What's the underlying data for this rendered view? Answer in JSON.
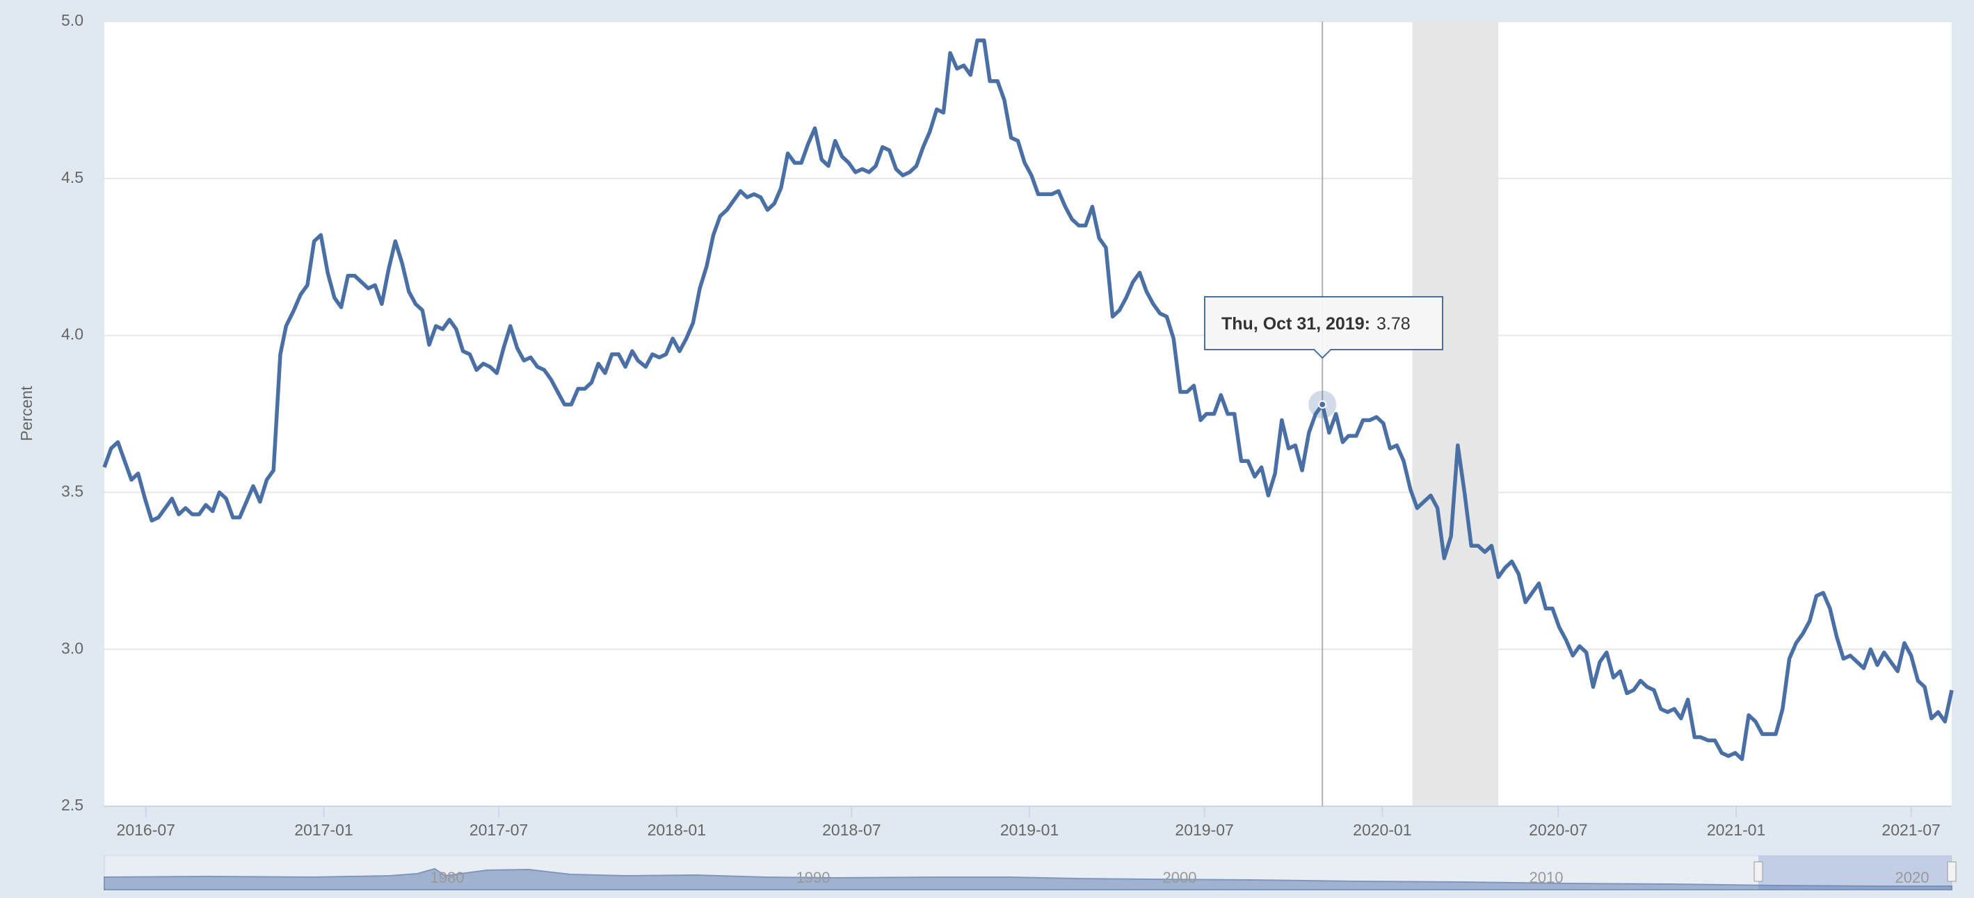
{
  "chart_data": {
    "type": "line",
    "y_label": "Percent",
    "x": [
      "2016-05-19",
      "2016-05-26",
      "2016-06-02",
      "2016-06-09",
      "2016-06-16",
      "2016-06-23",
      "2016-06-30",
      "2016-07-07",
      "2016-07-14",
      "2016-07-21",
      "2016-07-28",
      "2016-08-04",
      "2016-08-11",
      "2016-08-18",
      "2016-08-25",
      "2016-09-01",
      "2016-09-08",
      "2016-09-15",
      "2016-09-22",
      "2016-09-29",
      "2016-10-06",
      "2016-10-13",
      "2016-10-20",
      "2016-10-27",
      "2016-11-03",
      "2016-11-10",
      "2016-11-17",
      "2016-11-23",
      "2016-12-01",
      "2016-12-08",
      "2016-12-15",
      "2016-12-22",
      "2016-12-29",
      "2017-01-05",
      "2017-01-12",
      "2017-01-19",
      "2017-01-26",
      "2017-02-02",
      "2017-02-09",
      "2017-02-16",
      "2017-02-23",
      "2017-03-02",
      "2017-03-09",
      "2017-03-16",
      "2017-03-23",
      "2017-03-30",
      "2017-04-06",
      "2017-04-13",
      "2017-04-20",
      "2017-04-27",
      "2017-05-04",
      "2017-05-11",
      "2017-05-18",
      "2017-05-25",
      "2017-06-01",
      "2017-06-08",
      "2017-06-15",
      "2017-06-22",
      "2017-06-29",
      "2017-07-06",
      "2017-07-13",
      "2017-07-20",
      "2017-07-27",
      "2017-08-03",
      "2017-08-10",
      "2017-08-17",
      "2017-08-24",
      "2017-08-31",
      "2017-09-07",
      "2017-09-14",
      "2017-09-21",
      "2017-09-28",
      "2017-10-05",
      "2017-10-12",
      "2017-10-19",
      "2017-10-26",
      "2017-11-02",
      "2017-11-09",
      "2017-11-16",
      "2017-11-22",
      "2017-11-30",
      "2017-12-07",
      "2017-12-14",
      "2017-12-21",
      "2017-12-28",
      "2018-01-04",
      "2018-01-11",
      "2018-01-18",
      "2018-01-25",
      "2018-02-01",
      "2018-02-08",
      "2018-02-15",
      "2018-02-22",
      "2018-03-01",
      "2018-03-08",
      "2018-03-15",
      "2018-03-22",
      "2018-03-29",
      "2018-04-05",
      "2018-04-12",
      "2018-04-19",
      "2018-04-26",
      "2018-05-03",
      "2018-05-10",
      "2018-05-17",
      "2018-05-24",
      "2018-05-31",
      "2018-06-07",
      "2018-06-14",
      "2018-06-21",
      "2018-06-28",
      "2018-07-05",
      "2018-07-12",
      "2018-07-19",
      "2018-07-26",
      "2018-08-02",
      "2018-08-09",
      "2018-08-16",
      "2018-08-23",
      "2018-08-30",
      "2018-09-06",
      "2018-09-13",
      "2018-09-20",
      "2018-09-27",
      "2018-10-04",
      "2018-10-11",
      "2018-10-18",
      "2018-10-25",
      "2018-11-01",
      "2018-11-08",
      "2018-11-15",
      "2018-11-21",
      "2018-11-29",
      "2018-12-06",
      "2018-12-13",
      "2018-12-20",
      "2018-12-27",
      "2019-01-03",
      "2019-01-10",
      "2019-01-17",
      "2019-01-24",
      "2019-01-31",
      "2019-02-07",
      "2019-02-14",
      "2019-02-21",
      "2019-02-28",
      "2019-03-07",
      "2019-03-14",
      "2019-03-21",
      "2019-03-28",
      "2019-04-04",
      "2019-04-11",
      "2019-04-18",
      "2019-04-25",
      "2019-05-02",
      "2019-05-09",
      "2019-05-16",
      "2019-05-23",
      "2019-05-30",
      "2019-06-06",
      "2019-06-13",
      "2019-06-20",
      "2019-06-27",
      "2019-07-03",
      "2019-07-11",
      "2019-07-18",
      "2019-07-25",
      "2019-08-01",
      "2019-08-08",
      "2019-08-15",
      "2019-08-22",
      "2019-08-29",
      "2019-09-05",
      "2019-09-12",
      "2019-09-19",
      "2019-09-26",
      "2019-10-03",
      "2019-10-10",
      "2019-10-17",
      "2019-10-24",
      "2019-10-31",
      "2019-11-07",
      "2019-11-14",
      "2019-11-21",
      "2019-11-27",
      "2019-12-05",
      "2019-12-12",
      "2019-12-19",
      "2019-12-26",
      "2020-01-02",
      "2020-01-09",
      "2020-01-16",
      "2020-01-23",
      "2020-01-30",
      "2020-02-06",
      "2020-02-13",
      "2020-02-20",
      "2020-02-27",
      "2020-03-05",
      "2020-03-12",
      "2020-03-19",
      "2020-03-26",
      "2020-04-02",
      "2020-04-09",
      "2020-04-16",
      "2020-04-23",
      "2020-04-30",
      "2020-05-07",
      "2020-05-14",
      "2020-05-21",
      "2020-05-28",
      "2020-06-04",
      "2020-06-11",
      "2020-06-18",
      "2020-06-25",
      "2020-07-02",
      "2020-07-09",
      "2020-07-16",
      "2020-07-23",
      "2020-07-30",
      "2020-08-06",
      "2020-08-13",
      "2020-08-20",
      "2020-08-27",
      "2020-09-03",
      "2020-09-10",
      "2020-09-17",
      "2020-09-24",
      "2020-10-01",
      "2020-10-08",
      "2020-10-15",
      "2020-10-22",
      "2020-10-29",
      "2020-11-05",
      "2020-11-12",
      "2020-11-19",
      "2020-11-25",
      "2020-12-03",
      "2020-12-10",
      "2020-12-17",
      "2020-12-24",
      "2020-12-31",
      "2021-01-07",
      "2021-01-14",
      "2021-01-21",
      "2021-01-28",
      "2021-02-04",
      "2021-02-11",
      "2021-02-18",
      "2021-02-25",
      "2021-03-04",
      "2021-03-11",
      "2021-03-18",
      "2021-03-25",
      "2021-04-01",
      "2021-04-08",
      "2021-04-15",
      "2021-04-22",
      "2021-04-29",
      "2021-05-06",
      "2021-05-13",
      "2021-05-20",
      "2021-05-27",
      "2021-06-03",
      "2021-06-10",
      "2021-06-17",
      "2021-06-24",
      "2021-07-01",
      "2021-07-08",
      "2021-07-15",
      "2021-07-22",
      "2021-07-29",
      "2021-08-05",
      "2021-08-12"
    ],
    "values": [
      3.58,
      3.64,
      3.66,
      3.6,
      3.54,
      3.56,
      3.48,
      3.41,
      3.42,
      3.45,
      3.48,
      3.43,
      3.45,
      3.43,
      3.43,
      3.46,
      3.44,
      3.5,
      3.48,
      3.42,
      3.42,
      3.47,
      3.52,
      3.47,
      3.54,
      3.57,
      3.94,
      4.03,
      4.08,
      4.13,
      4.16,
      4.3,
      4.32,
      4.2,
      4.12,
      4.09,
      4.19,
      4.19,
      4.17,
      4.15,
      4.16,
      4.1,
      4.21,
      4.3,
      4.23,
      4.14,
      4.1,
      4.08,
      3.97,
      4.03,
      4.02,
      4.05,
      4.02,
      3.95,
      3.94,
      3.89,
      3.91,
      3.9,
      3.88,
      3.96,
      4.03,
      3.96,
      3.92,
      3.93,
      3.9,
      3.89,
      3.86,
      3.82,
      3.78,
      3.78,
      3.83,
      3.83,
      3.85,
      3.91,
      3.88,
      3.94,
      3.94,
      3.9,
      3.95,
      3.92,
      3.9,
      3.94,
      3.93,
      3.94,
      3.99,
      3.95,
      3.99,
      4.04,
      4.15,
      4.22,
      4.32,
      4.38,
      4.4,
      4.43,
      4.46,
      4.44,
      4.45,
      4.44,
      4.4,
      4.42,
      4.47,
      4.58,
      4.55,
      4.55,
      4.61,
      4.66,
      4.56,
      4.54,
      4.62,
      4.57,
      4.55,
      4.52,
      4.53,
      4.52,
      4.54,
      4.6,
      4.59,
      4.53,
      4.51,
      4.52,
      4.54,
      4.6,
      4.65,
      4.72,
      4.71,
      4.9,
      4.85,
      4.86,
      4.83,
      4.94,
      4.94,
      4.81,
      4.81,
      4.75,
      4.63,
      4.62,
      4.55,
      4.51,
      4.45,
      4.45,
      4.45,
      4.46,
      4.41,
      4.37,
      4.35,
      4.35,
      4.41,
      4.31,
      4.28,
      4.06,
      4.08,
      4.12,
      4.17,
      4.2,
      4.14,
      4.1,
      4.07,
      4.06,
      3.99,
      3.82,
      3.82,
      3.84,
      3.73,
      3.75,
      3.75,
      3.81,
      3.75,
      3.75,
      3.6,
      3.6,
      3.55,
      3.58,
      3.49,
      3.56,
      3.73,
      3.64,
      3.65,
      3.57,
      3.69,
      3.75,
      3.78,
      3.69,
      3.75,
      3.66,
      3.68,
      3.68,
      3.73,
      3.73,
      3.74,
      3.72,
      3.64,
      3.65,
      3.6,
      3.51,
      3.45,
      3.47,
      3.49,
      3.45,
      3.29,
      3.36,
      3.65,
      3.5,
      3.33,
      3.33,
      3.31,
      3.33,
      3.23,
      3.26,
      3.28,
      3.24,
      3.15,
      3.18,
      3.21,
      3.13,
      3.13,
      3.07,
      3.03,
      2.98,
      3.01,
      2.99,
      2.88,
      2.96,
      2.99,
      2.91,
      2.93,
      2.86,
      2.87,
      2.9,
      2.88,
      2.87,
      2.81,
      2.8,
      2.81,
      2.78,
      2.84,
      2.72,
      2.72,
      2.71,
      2.71,
      2.67,
      2.66,
      2.67,
      2.65,
      2.79,
      2.77,
      2.73,
      2.73,
      2.73,
      2.81,
      2.97,
      3.02,
      3.05,
      3.09,
      3.17,
      3.18,
      3.13,
      3.04,
      2.97,
      2.98,
      2.96,
      2.94,
      3.0,
      2.95,
      2.99,
      2.96,
      2.93,
      3.02,
      2.98,
      2.9,
      2.88,
      2.78,
      2.8,
      2.77,
      2.87
    ],
    "color": "#4a6fa5",
    "xlim": [
      "2016-05-19",
      "2021-08-12"
    ],
    "xticks": [
      {
        "value": "2016-07-01",
        "label": "2016-07"
      },
      {
        "value": "2017-01-01",
        "label": "2017-01"
      },
      {
        "value": "2017-07-01",
        "label": "2017-07"
      },
      {
        "value": "2018-01-01",
        "label": "2018-01"
      },
      {
        "value": "2018-07-01",
        "label": "2018-07"
      },
      {
        "value": "2019-01-01",
        "label": "2019-01"
      },
      {
        "value": "2019-07-01",
        "label": "2019-07"
      },
      {
        "value": "2020-01-01",
        "label": "2020-01"
      },
      {
        "value": "2020-07-01",
        "label": "2020-07"
      },
      {
        "value": "2021-01-01",
        "label": "2021-01"
      },
      {
        "value": "2021-07-01",
        "label": "2021-07"
      }
    ],
    "ylim": [
      2.5,
      5
    ],
    "yticks": [
      2.5,
      {
        "value": 3,
        "label": "3.0"
      },
      3.5,
      {
        "value": 4,
        "label": "4.0"
      },
      4.5,
      {
        "value": 5,
        "label": "5.0"
      }
    ],
    "grid": true,
    "recessions": [
      [
        "2020-02-01",
        "2020-04-30"
      ]
    ],
    "tooltip": {
      "label": "Thu, Oct 31, 2019:"
    },
    "navigator": {
      "labels": [
        "1980",
        "1990",
        "2000",
        "2010",
        "2020"
      ]
    }
  }
}
